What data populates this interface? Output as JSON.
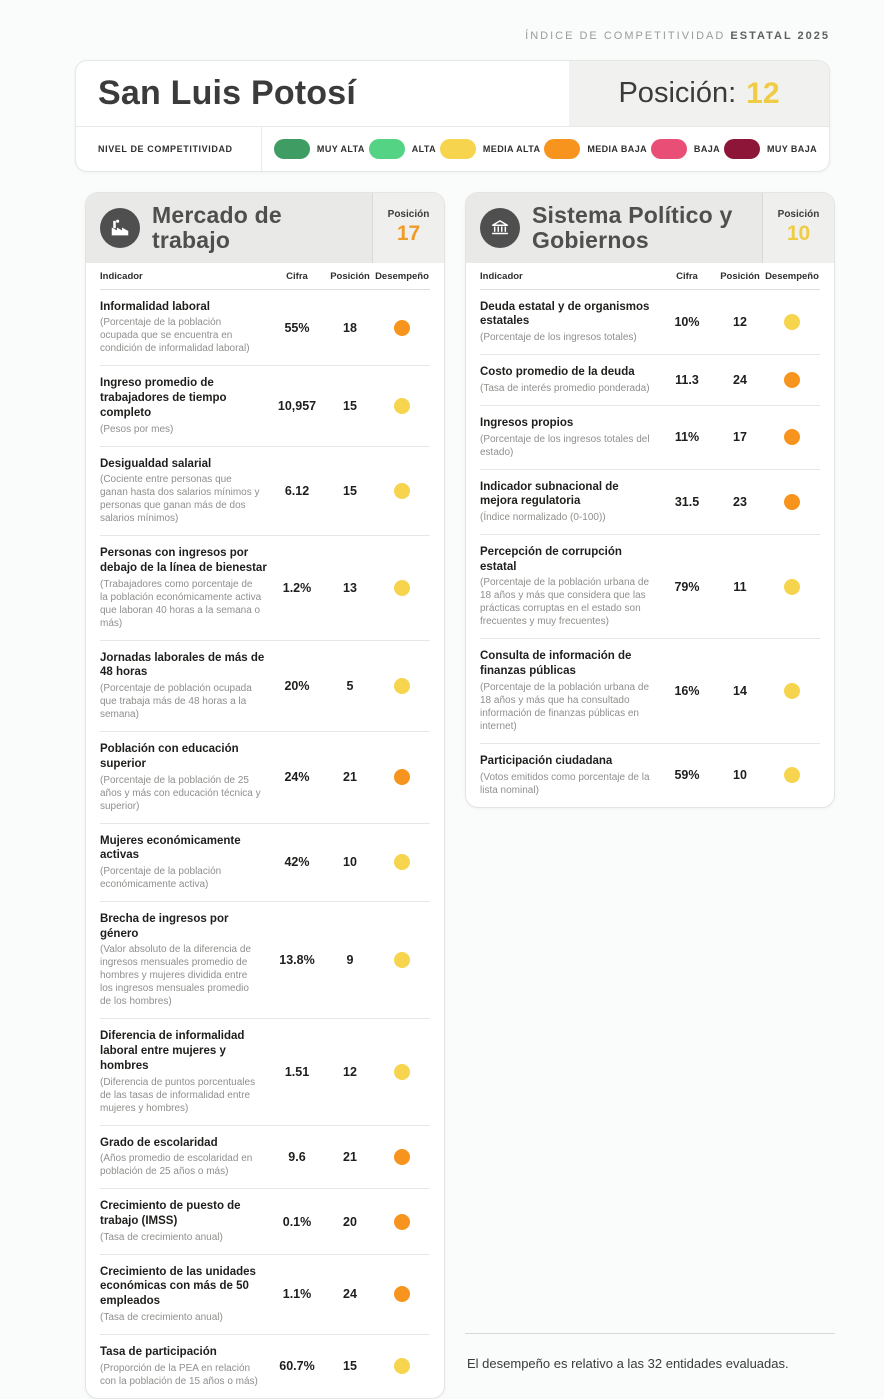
{
  "page": {
    "brand_light": "ÍNDICE DE COMPETITIVIDAD",
    "brand_bold": "ESTATAL 2025",
    "footer_note": "El desempeño es relativo a las 32 entidades evaluadas."
  },
  "title_card": {
    "state_name": "San Luis Potosí",
    "position_label": "Posición:",
    "position_value": "12",
    "position_color": "#f0cc44"
  },
  "legend": {
    "label": "NIVEL DE COMPETITIVIDAD",
    "items": [
      {
        "label": "MUY ALTA",
        "color": "#3f9d63"
      },
      {
        "label": "ALTA",
        "color": "#55d385"
      },
      {
        "label": "MEDIA ALTA",
        "color": "#f6d44d"
      },
      {
        "label": "MEDIA BAJA",
        "color": "#f7941e"
      },
      {
        "label": "BAJA",
        "color": "#e94e77"
      },
      {
        "label": "MUY BAJA",
        "color": "#8c1538"
      }
    ]
  },
  "columns": {
    "indicator": "Indicador",
    "value": "Cifra",
    "position": "Posición",
    "performance": "Desempeño"
  },
  "cards": [
    {
      "title": "Mercado de trabajo",
      "icon": "factory-icon",
      "position_label": "Posición",
      "position_value": "17",
      "position_color": "#ef9b28",
      "rows": [
        {
          "name": "Informalidad laboral",
          "description": "(Porcentaje de la población ocupada que se encuentra en condición de informalidad laboral)",
          "value": "55%",
          "position": "18",
          "performance_color": "#f7941e"
        },
        {
          "name": "Ingreso promedio de trabajadores de tiempo completo",
          "description": "(Pesos por mes)",
          "value": "10,957",
          "position": "15",
          "performance_color": "#f6d44d"
        },
        {
          "name": "Desigualdad salarial",
          "description": "(Cociente entre personas que ganan hasta dos salarios mínimos y personas que ganan más de dos salarios mínimos)",
          "value": "6.12",
          "position": "15",
          "performance_color": "#f6d44d"
        },
        {
          "name": "Personas con ingresos por debajo de la línea de bienestar",
          "description": "(Trabajadores como porcentaje de la población económicamente activa que laboran 40 horas a la semana o más)",
          "value": "1.2%",
          "position": "13",
          "performance_color": "#f6d44d"
        },
        {
          "name": "Jornadas laborales de más de 48 horas",
          "description": "(Porcentaje de población ocupada que trabaja más de 48 horas a la semana)",
          "value": "20%",
          "position": "5",
          "performance_color": "#f6d44d"
        },
        {
          "name": "Población con educación superior",
          "description": "(Porcentaje de la población de 25 años y más con educación técnica y superior)",
          "value": "24%",
          "position": "21",
          "performance_color": "#f7941e"
        },
        {
          "name": "Mujeres económicamente activas",
          "description": "(Porcentaje de la población económicamente activa)",
          "value": "42%",
          "position": "10",
          "performance_color": "#f6d44d"
        },
        {
          "name": "Brecha de ingresos por género",
          "description": "(Valor absoluto de la diferencia de ingresos mensuales promedio de hombres y mujeres dividida entre los ingresos mensuales promedio de los hombres)",
          "value": "13.8%",
          "position": "9",
          "performance_color": "#f6d44d"
        },
        {
          "name": "Diferencia de informalidad laboral entre mujeres y hombres",
          "description": "(Diferencia de puntos porcentuales de las tasas de informalidad entre mujeres y hombres)",
          "value": "1.51",
          "position": "12",
          "performance_color": "#f6d44d"
        },
        {
          "name": "Grado de escolaridad",
          "description": "(Años promedio de escolaridad en población de 25 años o más)",
          "value": "9.6",
          "position": "21",
          "performance_color": "#f7941e"
        },
        {
          "name": "Crecimiento de puesto de trabajo (IMSS)",
          "description": "(Tasa de crecimiento anual)",
          "value": "0.1%",
          "position": "20",
          "performance_color": "#f7941e"
        },
        {
          "name": "Crecimiento de las unidades económicas con más de 50 empleados",
          "description": "(Tasa de crecimiento anual)",
          "value": "1.1%",
          "position": "24",
          "performance_color": "#f7941e"
        },
        {
          "name": "Tasa de participación",
          "description": "(Proporción de la PEA en relación con la población de 15 años o más)",
          "value": "60.7%",
          "position": "15",
          "performance_color": "#f6d44d"
        }
      ]
    },
    {
      "title": "Sistema Político y Gobiernos",
      "icon": "bank-icon",
      "position_label": "Posición",
      "position_value": "10",
      "position_color": "#f0cc44",
      "rows": [
        {
          "name": "Deuda estatal y de organismos estatales",
          "description": "(Porcentaje de los ingresos totales)",
          "value": "10%",
          "position": "12",
          "performance_color": "#f6d44d"
        },
        {
          "name": "Costo promedio de la deuda",
          "description": "(Tasa de interés promedio ponderada)",
          "value": "11.3",
          "position": "24",
          "performance_color": "#f7941e"
        },
        {
          "name": "Ingresos propios",
          "description": "(Porcentaje de los ingresos totales del estado)",
          "value": "11%",
          "position": "17",
          "performance_color": "#f7941e"
        },
        {
          "name": "Indicador subnacional de mejora regulatoria",
          "description": "(Índice normalizado (0-100))",
          "value": "31.5",
          "position": "23",
          "performance_color": "#f7941e"
        },
        {
          "name": "Percepción de corrupción estatal",
          "description": "(Porcentaje de la población urbana de 18 años y más que considera que las prácticas corruptas en el estado son frecuentes y muy frecuentes)",
          "value": "79%",
          "position": "11",
          "performance_color": "#f6d44d"
        },
        {
          "name": "Consulta de información de finanzas públicas",
          "description": "(Porcentaje de la población urbana de 18 años y más que ha consultado información de finanzas públicas en internet)",
          "value": "16%",
          "position": "14",
          "performance_color": "#f6d44d"
        },
        {
          "name": "Participación ciudadana",
          "description": "(Votos emitidos como porcentaje de la lista nominal)",
          "value": "59%",
          "position": "10",
          "performance_color": "#f6d44d"
        }
      ]
    }
  ]
}
